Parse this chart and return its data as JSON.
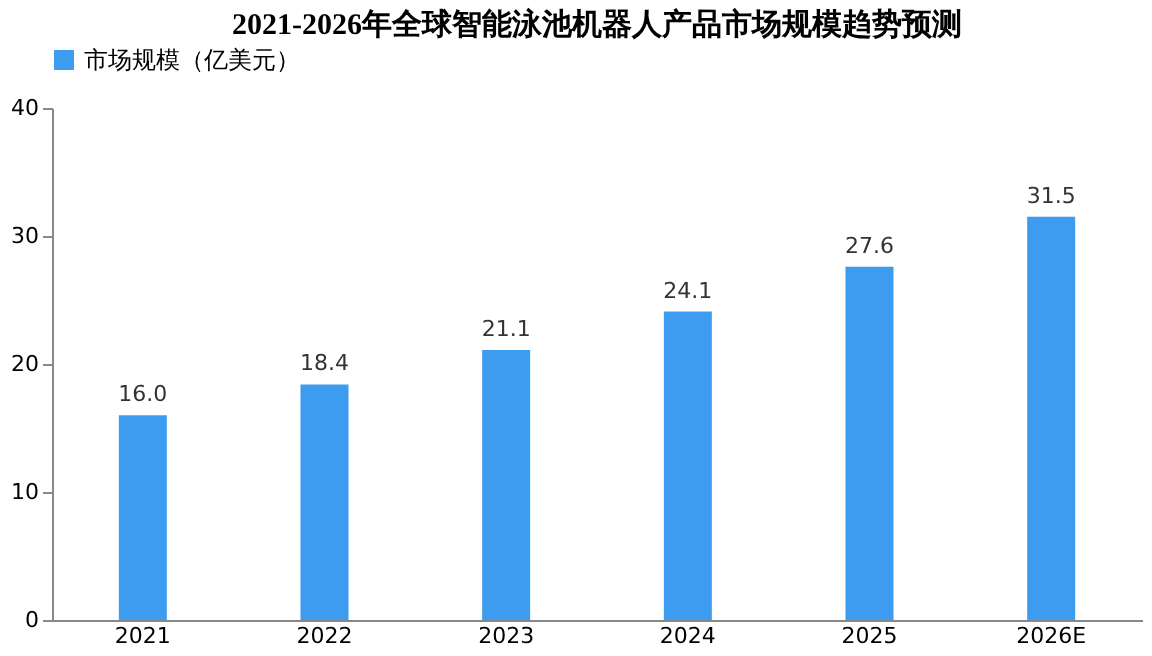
{
  "chart_data": {
    "type": "bar",
    "title": "2021-2026年全球智能泳池机器人产品市场规模趋势预测",
    "categories": [
      "2021",
      "2022",
      "2023",
      "2024",
      "2025",
      "2026E"
    ],
    "series": [
      {
        "name": "市场规模（亿美元）",
        "color": "#3d9cf0",
        "values": [
          16.0,
          18.4,
          21.1,
          24.1,
          27.6,
          31.5
        ],
        "value_labels": [
          "16.0",
          "18.4",
          "21.1",
          "24.1",
          "27.6",
          "31.5"
        ]
      }
    ],
    "ylim": [
      0,
      40
    ],
    "yticks": [
      0,
      10,
      20,
      30,
      40
    ],
    "grid": false,
    "legend": "top"
  }
}
